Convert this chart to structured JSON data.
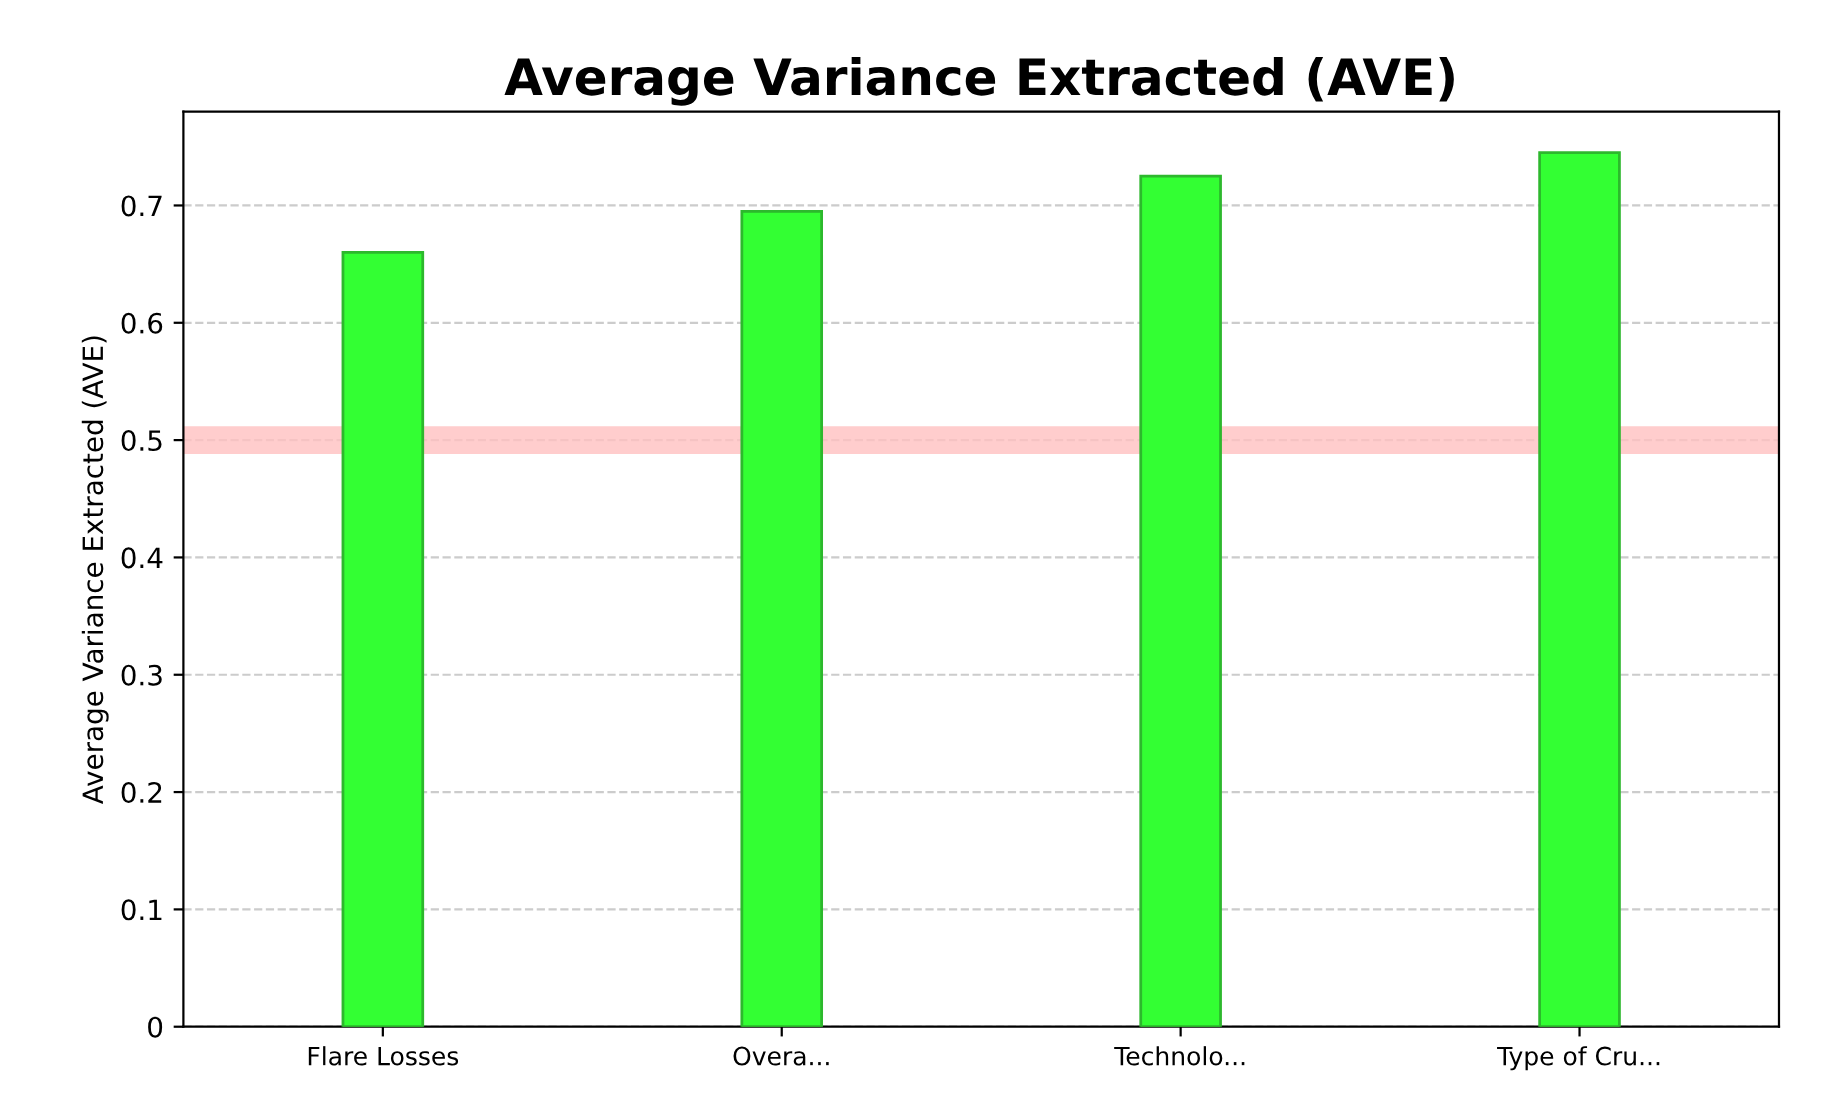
{
  "chart_data": {
    "type": "bar",
    "title": "Average Variance Extracted (AVE)",
    "ylabel": "Average Variance Extracted (AVE)",
    "categories": [
      "Flare Losses",
      "Overa...",
      "Technolo...",
      "Type of Cru..."
    ],
    "values": [
      0.66,
      0.695,
      0.725,
      0.745
    ],
    "color": "#33ff33",
    "ylim": [
      0,
      0.78
    ],
    "yticks": [
      0,
      0.1,
      0.2,
      0.3,
      0.4,
      0.5,
      0.6,
      0.7
    ],
    "grid": "y",
    "ref_lines": [
      {
        "axis": "y",
        "value": 0.5,
        "color": "#ffc0c0"
      }
    ]
  }
}
